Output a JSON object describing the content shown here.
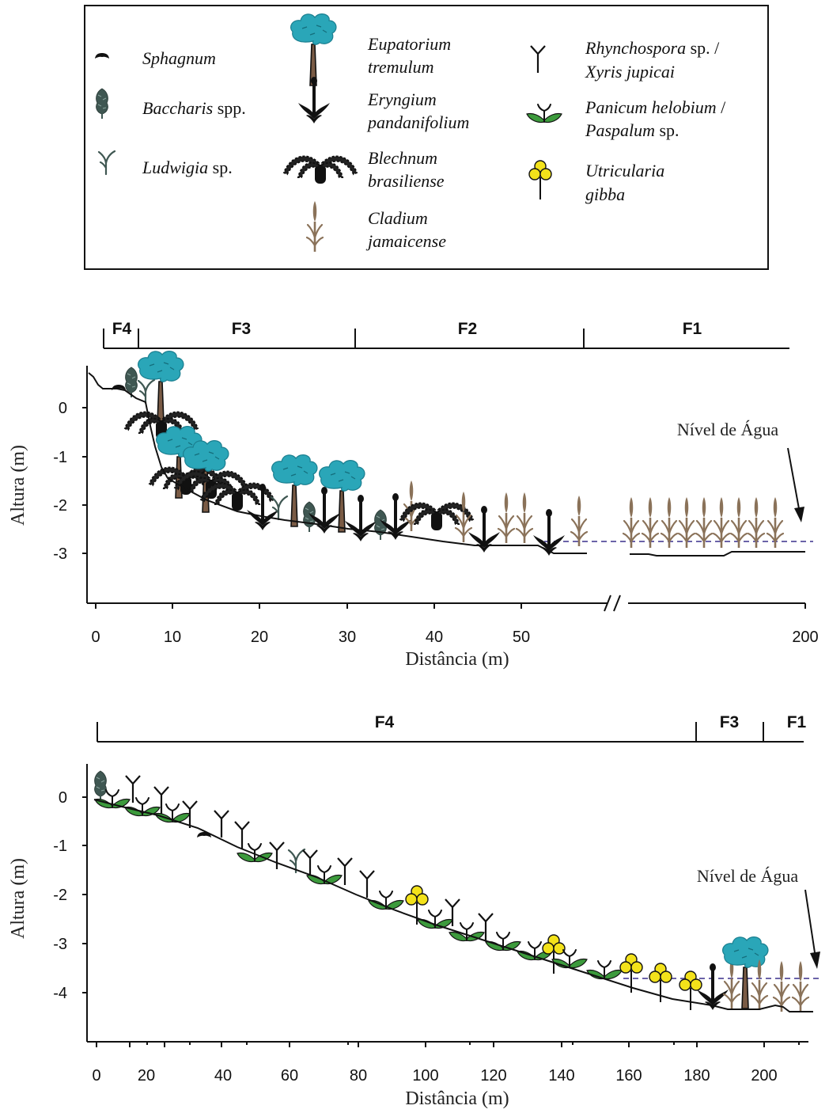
{
  "legend": {
    "items": [
      {
        "id": "sphagnum",
        "icon": "sphagnum-icon",
        "parts": [
          [
            "Sphagnum",
            "i"
          ]
        ],
        "parts2": []
      },
      {
        "id": "baccharis",
        "icon": "baccharis-icon",
        "parts": [
          [
            "Baccharis",
            "i"
          ],
          [
            " spp.",
            "n"
          ]
        ],
        "parts2": []
      },
      {
        "id": "ludwigia",
        "icon": "ludwigia-icon",
        "parts": [
          [
            "Ludwigia",
            "i"
          ],
          [
            " sp.",
            "n"
          ]
        ],
        "parts2": []
      },
      {
        "id": "eupatorium",
        "icon": "eupatorium-icon",
        "parts": [
          [
            "Eupatorium",
            "i"
          ]
        ],
        "parts2": [
          [
            "tremulum",
            "i"
          ]
        ]
      },
      {
        "id": "eryngium",
        "icon": "eryngium-icon",
        "parts": [
          [
            "Eryngium",
            "i"
          ]
        ],
        "parts2": [
          [
            "pandanifolium",
            "i"
          ]
        ]
      },
      {
        "id": "blechnum",
        "icon": "blechnum-icon",
        "parts": [
          [
            "Blechnum",
            "i"
          ]
        ],
        "parts2": [
          [
            "brasiliense",
            "i"
          ]
        ]
      },
      {
        "id": "cladium",
        "icon": "cladium-icon",
        "parts": [
          [
            "Cladium",
            "i"
          ]
        ],
        "parts2": [
          [
            "jamaicense",
            "i"
          ]
        ]
      },
      {
        "id": "rhynchospora",
        "icon": "rhynchospora-icon",
        "parts": [
          [
            "Rhynchospora",
            "i"
          ],
          [
            " sp. /",
            "n"
          ]
        ],
        "parts2": [
          [
            "Xyris jupicai",
            "i"
          ]
        ]
      },
      {
        "id": "panicum",
        "icon": "panicum-icon",
        "parts": [
          [
            "Panicum helobium",
            "i"
          ],
          [
            " /",
            "n"
          ]
        ],
        "parts2": [
          [
            "Paspalum",
            "i"
          ],
          [
            " sp.",
            "n"
          ]
        ]
      },
      {
        "id": "utricularia",
        "icon": "utricularia-icon",
        "parts": [
          [
            "Utricularia",
            "i"
          ]
        ],
        "parts2": [
          [
            "gibba",
            "i"
          ]
        ]
      }
    ]
  },
  "colors": {
    "eupatorium": "#2aa6b8",
    "baccharis": "#3f5752",
    "ludwigia": "#3f5752",
    "cladium": "#8a7259",
    "panicum": "#3c9a3c",
    "utricularia": "#f3e21a",
    "water": "#6b63a8",
    "black": "#111111"
  },
  "panel1": {
    "zones": [
      "F4",
      "F3",
      "F2",
      "F1"
    ],
    "y_label": "Altura (m)",
    "x_label": "Distância (m)",
    "y_ticks": [
      "0",
      "-1",
      "-2",
      "-3"
    ],
    "x_ticks": [
      "0",
      "10",
      "20",
      "30",
      "40",
      "50",
      "200"
    ],
    "water_label": "Nível de Água"
  },
  "panel2": {
    "zones": [
      "F4",
      "F3",
      "F1"
    ],
    "y_label": "Altura (m)",
    "x_label": "Distância (m)",
    "y_ticks": [
      "0",
      "-1",
      "-2",
      "-3",
      "-4"
    ],
    "x_ticks": [
      "0",
      "20",
      "40",
      "60",
      "80",
      "100",
      "120",
      "140",
      "160",
      "180",
      "200"
    ],
    "water_label": "Nível de Água"
  }
}
